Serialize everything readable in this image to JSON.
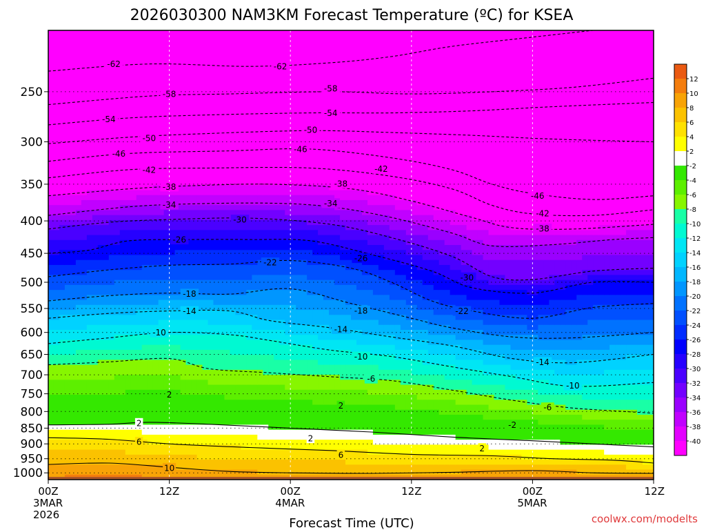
{
  "chart_data": {
    "type": "heatmap",
    "title": "2026030300 NAM3KM Forecast Temperature (ºC) for KSEA",
    "xlabel": "Forecast Time (UTC)",
    "credit": "coolwx.com/modelts",
    "x_ticks": [
      {
        "hour": 0,
        "lines": [
          "00Z",
          "3MAR",
          "2026"
        ]
      },
      {
        "hour": 12,
        "lines": [
          "12Z"
        ]
      },
      {
        "hour": 24,
        "lines": [
          "00Z",
          "4MAR"
        ]
      },
      {
        "hour": 36,
        "lines": [
          "12Z"
        ]
      },
      {
        "hour": 48,
        "lines": [
          "00Z",
          "5MAR"
        ]
      },
      {
        "hour": 60,
        "lines": [
          "12Z"
        ]
      }
    ],
    "xlim": [
      0,
      60
    ],
    "y_scale": "log",
    "y_ticks": [
      250,
      300,
      350,
      400,
      450,
      500,
      550,
      600,
      650,
      700,
      750,
      800,
      850,
      900,
      950,
      1000
    ],
    "ylim": [
      200,
      1025
    ],
    "ground_level_hpa": 1015,
    "grid": true,
    "colorbar": {
      "levels": [
        14,
        12,
        10,
        8,
        6,
        4,
        2,
        -2,
        -4,
        -6,
        -8,
        -10,
        -12,
        -14,
        -16,
        -18,
        -20,
        -22,
        -24,
        -26,
        -28,
        -30,
        -32,
        -34,
        -36,
        -38,
        -40
      ],
      "labels": [
        "12",
        "10",
        "8",
        "6",
        "4",
        "2",
        "-2",
        "-4",
        "-6",
        "-8",
        "-10",
        "-12",
        "-14",
        "-16",
        "-18",
        "-20",
        "-22",
        "-24",
        "-26",
        "-28",
        "-30",
        "-32",
        "-34",
        "-36",
        "-38",
        "-40"
      ],
      "colors": [
        "#ea5a12",
        "#f47d0d",
        "#f8a306",
        "#fbc200",
        "#fee100",
        "#ffff00",
        "#ffffff",
        "#34e800",
        "#5def00",
        "#87f600",
        "#19ffa6",
        "#00f9d2",
        "#00e6f4",
        "#00d2ff",
        "#00b7ff",
        "#0096ff",
        "#0072ff",
        "#0050ff",
        "#002cff",
        "#0000ff",
        "#2600ff",
        "#4a00ff",
        "#7300ff",
        "#9a00ff",
        "#c100ff",
        "#e300ff",
        "#ff00ff"
      ],
      "ground_color": "#a85428"
    },
    "isotherms": [
      {
        "temp": -62,
        "p": [
          [
            0,
            232
          ],
          [
            10,
            226
          ],
          [
            20,
            228
          ],
          [
            28,
            225
          ],
          [
            34,
            220
          ],
          [
            40,
            212
          ],
          [
            48,
            205
          ],
          [
            54,
            200
          ]
        ]
      },
      {
        "temp": -58,
        "p": [
          [
            0,
            262
          ],
          [
            10,
            254
          ],
          [
            18,
            252
          ],
          [
            28,
            250
          ],
          [
            36,
            252
          ],
          [
            44,
            250
          ],
          [
            52,
            246
          ],
          [
            60,
            238
          ]
        ]
      },
      {
        "temp": -54,
        "p": [
          [
            0,
            282
          ],
          [
            8,
            275
          ],
          [
            16,
            272
          ],
          [
            26,
            270
          ],
          [
            34,
            270
          ],
          [
            42,
            268
          ],
          [
            50,
            264
          ],
          [
            60,
            260
          ]
        ]
      },
      {
        "temp": -50,
        "p": [
          [
            0,
            302
          ],
          [
            8,
            295
          ],
          [
            16,
            291
          ],
          [
            26,
            288
          ],
          [
            34,
            290
          ],
          [
            42,
            293
          ],
          [
            50,
            297
          ],
          [
            60,
            300
          ]
        ]
      },
      {
        "temp": -46,
        "p": [
          [
            0,
            322
          ],
          [
            8,
            313
          ],
          [
            18,
            310
          ],
          [
            26,
            308
          ],
          [
            34,
            318
          ],
          [
            40,
            332
          ],
          [
            44,
            350
          ],
          [
            48,
            362
          ],
          [
            54,
            370
          ],
          [
            60,
            365
          ]
        ]
      },
      {
        "temp": -42,
        "p": [
          [
            0,
            342
          ],
          [
            8,
            332
          ],
          [
            16,
            330
          ],
          [
            26,
            330
          ],
          [
            34,
            340
          ],
          [
            40,
            356
          ],
          [
            44,
            378
          ],
          [
            48,
            390
          ],
          [
            54,
            392
          ],
          [
            60,
            384
          ]
        ]
      },
      {
        "temp": -38,
        "p": [
          [
            0,
            365
          ],
          [
            8,
            356
          ],
          [
            14,
            352
          ],
          [
            22,
            350
          ],
          [
            30,
            356
          ],
          [
            36,
            372
          ],
          [
            42,
            395
          ],
          [
            46,
            410
          ],
          [
            52,
            412
          ],
          [
            60,
            405
          ]
        ]
      },
      {
        "temp": -34,
        "p": [
          [
            0,
            392
          ],
          [
            8,
            380
          ],
          [
            14,
            376
          ],
          [
            22,
            375
          ],
          [
            28,
            380
          ],
          [
            34,
            395
          ],
          [
            40,
            418
          ],
          [
            44,
            438
          ],
          [
            50,
            436
          ],
          [
            56,
            428
          ],
          [
            60,
            425
          ]
        ]
      },
      {
        "temp": -30,
        "p": [
          [
            0,
            412
          ],
          [
            6,
            402
          ],
          [
            12,
            398
          ],
          [
            20,
            396
          ],
          [
            28,
            405
          ],
          [
            34,
            425
          ],
          [
            40,
            455
          ],
          [
            44,
            490
          ],
          [
            48,
            495
          ],
          [
            54,
            480
          ],
          [
            60,
            475
          ]
        ]
      },
      {
        "temp": -26,
        "p": [
          [
            0,
            450
          ],
          [
            4,
            445
          ],
          [
            8,
            430
          ],
          [
            14,
            428
          ],
          [
            20,
            428
          ],
          [
            26,
            430
          ],
          [
            32,
            452
          ],
          [
            38,
            480
          ],
          [
            42,
            510
          ],
          [
            48,
            520
          ],
          [
            54,
            500
          ],
          [
            60,
            500
          ]
        ]
      },
      {
        "temp": -22,
        "p": [
          [
            0,
            490
          ],
          [
            6,
            478
          ],
          [
            12,
            470
          ],
          [
            18,
            468
          ],
          [
            24,
            462
          ],
          [
            30,
            475
          ],
          [
            34,
            500
          ],
          [
            38,
            535
          ],
          [
            42,
            555
          ],
          [
            48,
            570
          ],
          [
            54,
            548
          ],
          [
            60,
            540
          ]
        ]
      },
      {
        "temp": -18,
        "p": [
          [
            0,
            535
          ],
          [
            6,
            525
          ],
          [
            12,
            520
          ],
          [
            18,
            522
          ],
          [
            24,
            512
          ],
          [
            30,
            540
          ],
          [
            36,
            570
          ],
          [
            40,
            590
          ],
          [
            46,
            610
          ],
          [
            52,
            612
          ],
          [
            60,
            600
          ]
        ]
      },
      {
        "temp": -14,
        "p": [
          [
            0,
            570
          ],
          [
            6,
            560
          ],
          [
            12,
            555
          ],
          [
            18,
            555
          ],
          [
            22,
            575
          ],
          [
            28,
            590
          ],
          [
            34,
            610
          ],
          [
            40,
            630
          ],
          [
            46,
            660
          ],
          [
            52,
            670
          ],
          [
            60,
            650
          ]
        ]
      },
      {
        "temp": -10,
        "p": [
          [
            0,
            625
          ],
          [
            6,
            612
          ],
          [
            12,
            600
          ],
          [
            18,
            605
          ],
          [
            22,
            618
          ],
          [
            28,
            640
          ],
          [
            34,
            655
          ],
          [
            40,
            680
          ],
          [
            46,
            705
          ],
          [
            52,
            730
          ],
          [
            60,
            720
          ]
        ]
      },
      {
        "temp": -6,
        "p": [
          [
            0,
            675
          ],
          [
            6,
            668
          ],
          [
            12,
            660
          ],
          [
            16,
            685
          ],
          [
            22,
            695
          ],
          [
            28,
            705
          ],
          [
            34,
            715
          ],
          [
            40,
            740
          ],
          [
            46,
            768
          ],
          [
            52,
            790
          ],
          [
            60,
            805
          ]
        ]
      },
      {
        "temp": 2,
        "p": [
          [
            0,
            840
          ],
          [
            6,
            838
          ],
          [
            10,
            832
          ],
          [
            16,
            838
          ],
          [
            24,
            850
          ],
          [
            32,
            862
          ],
          [
            40,
            878
          ],
          [
            48,
            890
          ],
          [
            54,
            900
          ],
          [
            60,
            910
          ]
        ]
      },
      {
        "temp": 6,
        "p": [
          [
            0,
            880
          ],
          [
            6,
            885
          ],
          [
            12,
            900
          ],
          [
            20,
            912
          ],
          [
            28,
            922
          ],
          [
            36,
            935
          ],
          [
            44,
            940
          ],
          [
            50,
            950
          ],
          [
            56,
            955
          ],
          [
            60,
            965
          ]
        ]
      },
      {
        "temp": 10,
        "p": [
          [
            0,
            970
          ],
          [
            6,
            965
          ],
          [
            12,
            980
          ],
          [
            18,
            995
          ],
          [
            24,
            1000
          ],
          [
            32,
            1002
          ],
          [
            40,
            998
          ],
          [
            48,
            992
          ],
          [
            54,
            1000
          ],
          [
            60,
            1002
          ]
        ]
      }
    ],
    "contour_labels": [
      {
        "t": 6.5,
        "p": 226,
        "text": "-62"
      },
      {
        "t": 23.0,
        "p": 228,
        "text": "-62"
      },
      {
        "t": 12.0,
        "p": 252,
        "text": "-58"
      },
      {
        "t": 28.0,
        "p": 247,
        "text": "-58"
      },
      {
        "t": 6.0,
        "p": 276,
        "text": "-54"
      },
      {
        "t": 28.0,
        "p": 270,
        "text": "-54"
      },
      {
        "t": 10.0,
        "p": 296,
        "text": "-50"
      },
      {
        "t": 26.0,
        "p": 287,
        "text": "-50"
      },
      {
        "t": 7.0,
        "p": 313,
        "text": "-46"
      },
      {
        "t": 25.0,
        "p": 308,
        "text": "-46"
      },
      {
        "t": 48.5,
        "p": 365,
        "text": "-46"
      },
      {
        "t": 10.0,
        "p": 332,
        "text": "-42"
      },
      {
        "t": 33.0,
        "p": 331,
        "text": "-42"
      },
      {
        "t": 49.0,
        "p": 389,
        "text": "-42"
      },
      {
        "t": 12.0,
        "p": 353,
        "text": "-38"
      },
      {
        "t": 29.0,
        "p": 349,
        "text": "-38"
      },
      {
        "t": 49.0,
        "p": 411,
        "text": "-38"
      },
      {
        "t": 12.0,
        "p": 377,
        "text": "-34"
      },
      {
        "t": 28.0,
        "p": 375,
        "text": "-34"
      },
      {
        "t": 19.0,
        "p": 398,
        "text": "-30"
      },
      {
        "t": 41.5,
        "p": 491,
        "text": "-30"
      },
      {
        "t": 13.0,
        "p": 428,
        "text": "-26"
      },
      {
        "t": 31.0,
        "p": 458,
        "text": "-26"
      },
      {
        "t": 22.0,
        "p": 465,
        "text": "-22"
      },
      {
        "t": 41.0,
        "p": 555,
        "text": "-22"
      },
      {
        "t": 14.0,
        "p": 521,
        "text": "-18"
      },
      {
        "t": 31.0,
        "p": 554,
        "text": "-18"
      },
      {
        "t": 14.0,
        "p": 555,
        "text": "-14"
      },
      {
        "t": 29.0,
        "p": 593,
        "text": "-14"
      },
      {
        "t": 49.0,
        "p": 668,
        "text": "-14"
      },
      {
        "t": 11.0,
        "p": 600,
        "text": "-10"
      },
      {
        "t": 31.0,
        "p": 655,
        "text": "-10"
      },
      {
        "t": 52.0,
        "p": 728,
        "text": "-10"
      },
      {
        "t": 32.0,
        "p": 710,
        "text": "-6"
      },
      {
        "t": 49.5,
        "p": 788,
        "text": "-6"
      },
      {
        "t": 12.0,
        "p": 752,
        "text": "2"
      },
      {
        "t": 29.0,
        "p": 783,
        "text": "2"
      },
      {
        "t": 46.0,
        "p": 840,
        "text": "-2"
      },
      {
        "t": 9.0,
        "p": 834,
        "text": "2"
      },
      {
        "t": 26.0,
        "p": 882,
        "text": "2"
      },
      {
        "t": 43.0,
        "p": 914,
        "text": "2"
      },
      {
        "t": 9.0,
        "p": 893,
        "text": "6"
      },
      {
        "t": 29.0,
        "p": 936,
        "text": "6"
      },
      {
        "t": 12.0,
        "p": 982,
        "text": "10"
      }
    ]
  }
}
